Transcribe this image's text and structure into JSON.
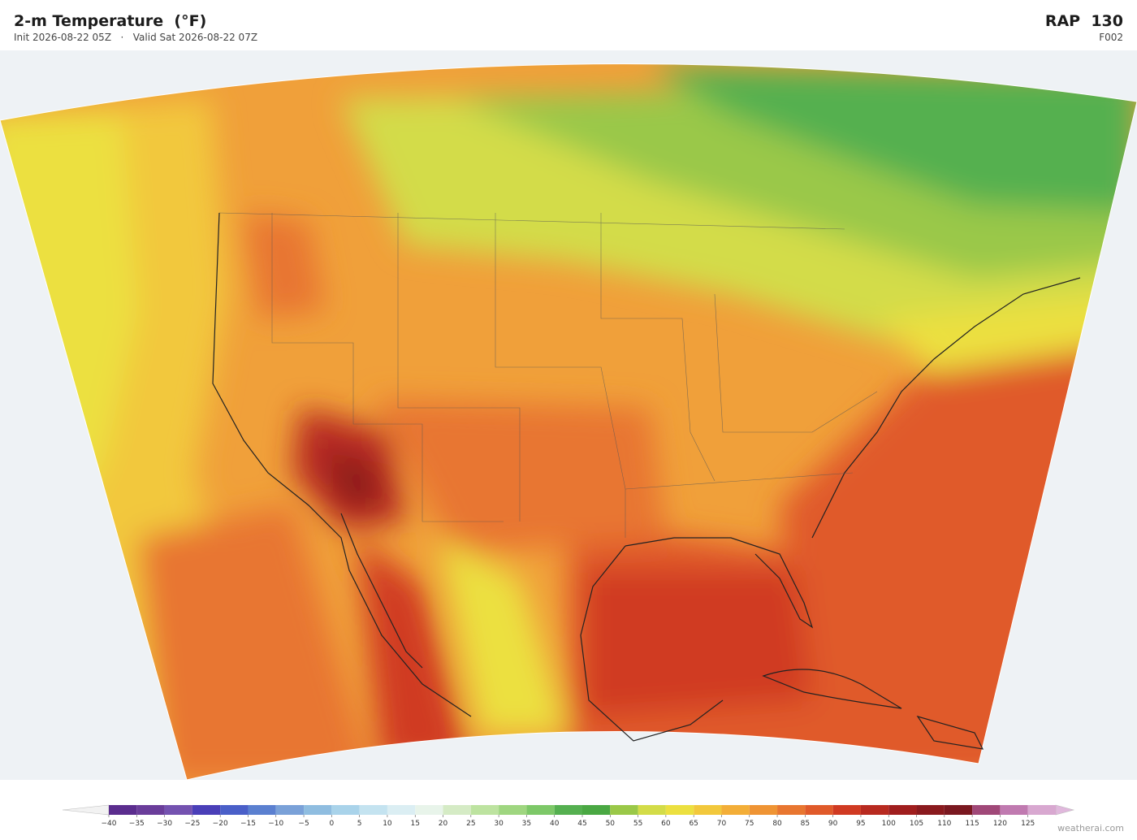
{
  "header": {
    "title": "2-m Temperature  (°F)",
    "init": "Init 2026-08-22 05Z",
    "separator": "·",
    "valid": "Valid Sat 2026-08-22 07Z",
    "model": "RAP  130",
    "forecast_hour": "F002"
  },
  "colorbar": {
    "lim": [
      -40,
      130
    ],
    "ticks": [
      {
        "value": -40,
        "label": "−40"
      },
      {
        "value": -35,
        "label": "−35"
      },
      {
        "value": -30,
        "label": "−30"
      },
      {
        "value": -25,
        "label": "−25"
      },
      {
        "value": -20,
        "label": "−20"
      },
      {
        "value": -15,
        "label": "−15"
      },
      {
        "value": -10,
        "label": "−10"
      },
      {
        "value": -5,
        "label": "−5"
      },
      0,
      5,
      10,
      15,
      20,
      25,
      30,
      35,
      40,
      45,
      50,
      55,
      60,
      65,
      70,
      75,
      80,
      85,
      90,
      95,
      100,
      105,
      110,
      115,
      120,
      125
    ],
    "colors": [
      "#5b2d8e",
      "#6a3d9a",
      "#7452b0",
      "#4a3fb8",
      "#4a5fc8",
      "#5b80d0",
      "#7aa1d8",
      "#8fbde0",
      "#a9d3ea",
      "#c4e3f0",
      "#dbeef3",
      "#e8f4ea",
      "#d5ebc5",
      "#bde3a0",
      "#9fd680",
      "#7dc868",
      "#55b050",
      "#4aa843",
      "#9ac848",
      "#d3dc48",
      "#ece040",
      "#f2c83c",
      "#f3ae38",
      "#ef9434",
      "#e87630",
      "#e05a2a",
      "#d03a22",
      "#b82a20",
      "#a01e1e",
      "#8a1a1e",
      "#7a1820",
      "#a04878",
      "#c07ab0",
      "#d8a8d0"
    ]
  },
  "footer": {
    "brand": "weatherai.com"
  }
}
